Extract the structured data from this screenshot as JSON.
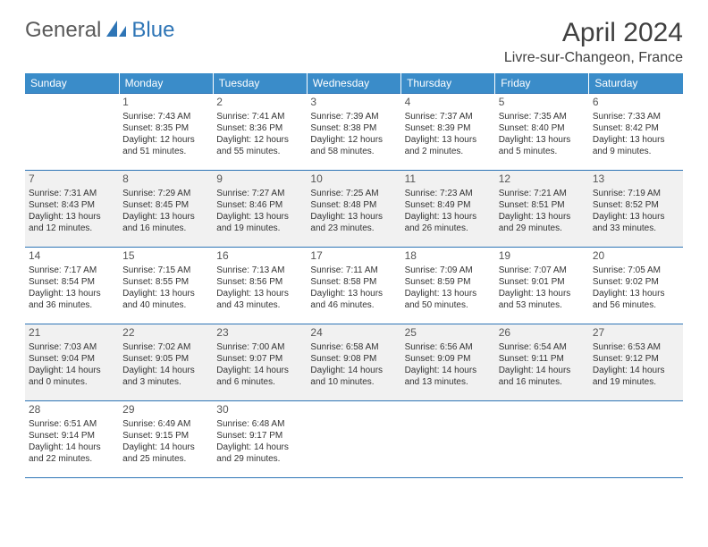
{
  "brand": {
    "general": "General",
    "blue": "Blue"
  },
  "title": "April 2024",
  "location": "Livre-sur-Changeon, France",
  "colors": {
    "header_bg": "#3a8cc9",
    "border": "#2e75b6",
    "shade_bg": "#f1f1f1",
    "text": "#333333"
  },
  "dayHeaders": [
    "Sunday",
    "Monday",
    "Tuesday",
    "Wednesday",
    "Thursday",
    "Friday",
    "Saturday"
  ],
  "weeks": [
    {
      "shaded": false,
      "days": [
        {
          "num": "",
          "lines": []
        },
        {
          "num": "1",
          "lines": [
            "Sunrise: 7:43 AM",
            "Sunset: 8:35 PM",
            "Daylight: 12 hours",
            "and 51 minutes."
          ]
        },
        {
          "num": "2",
          "lines": [
            "Sunrise: 7:41 AM",
            "Sunset: 8:36 PM",
            "Daylight: 12 hours",
            "and 55 minutes."
          ]
        },
        {
          "num": "3",
          "lines": [
            "Sunrise: 7:39 AM",
            "Sunset: 8:38 PM",
            "Daylight: 12 hours",
            "and 58 minutes."
          ]
        },
        {
          "num": "4",
          "lines": [
            "Sunrise: 7:37 AM",
            "Sunset: 8:39 PM",
            "Daylight: 13 hours",
            "and 2 minutes."
          ]
        },
        {
          "num": "5",
          "lines": [
            "Sunrise: 7:35 AM",
            "Sunset: 8:40 PM",
            "Daylight: 13 hours",
            "and 5 minutes."
          ]
        },
        {
          "num": "6",
          "lines": [
            "Sunrise: 7:33 AM",
            "Sunset: 8:42 PM",
            "Daylight: 13 hours",
            "and 9 minutes."
          ]
        }
      ]
    },
    {
      "shaded": true,
      "days": [
        {
          "num": "7",
          "lines": [
            "Sunrise: 7:31 AM",
            "Sunset: 8:43 PM",
            "Daylight: 13 hours",
            "and 12 minutes."
          ]
        },
        {
          "num": "8",
          "lines": [
            "Sunrise: 7:29 AM",
            "Sunset: 8:45 PM",
            "Daylight: 13 hours",
            "and 16 minutes."
          ]
        },
        {
          "num": "9",
          "lines": [
            "Sunrise: 7:27 AM",
            "Sunset: 8:46 PM",
            "Daylight: 13 hours",
            "and 19 minutes."
          ]
        },
        {
          "num": "10",
          "lines": [
            "Sunrise: 7:25 AM",
            "Sunset: 8:48 PM",
            "Daylight: 13 hours",
            "and 23 minutes."
          ]
        },
        {
          "num": "11",
          "lines": [
            "Sunrise: 7:23 AM",
            "Sunset: 8:49 PM",
            "Daylight: 13 hours",
            "and 26 minutes."
          ]
        },
        {
          "num": "12",
          "lines": [
            "Sunrise: 7:21 AM",
            "Sunset: 8:51 PM",
            "Daylight: 13 hours",
            "and 29 minutes."
          ]
        },
        {
          "num": "13",
          "lines": [
            "Sunrise: 7:19 AM",
            "Sunset: 8:52 PM",
            "Daylight: 13 hours",
            "and 33 minutes."
          ]
        }
      ]
    },
    {
      "shaded": false,
      "days": [
        {
          "num": "14",
          "lines": [
            "Sunrise: 7:17 AM",
            "Sunset: 8:54 PM",
            "Daylight: 13 hours",
            "and 36 minutes."
          ]
        },
        {
          "num": "15",
          "lines": [
            "Sunrise: 7:15 AM",
            "Sunset: 8:55 PM",
            "Daylight: 13 hours",
            "and 40 minutes."
          ]
        },
        {
          "num": "16",
          "lines": [
            "Sunrise: 7:13 AM",
            "Sunset: 8:56 PM",
            "Daylight: 13 hours",
            "and 43 minutes."
          ]
        },
        {
          "num": "17",
          "lines": [
            "Sunrise: 7:11 AM",
            "Sunset: 8:58 PM",
            "Daylight: 13 hours",
            "and 46 minutes."
          ]
        },
        {
          "num": "18",
          "lines": [
            "Sunrise: 7:09 AM",
            "Sunset: 8:59 PM",
            "Daylight: 13 hours",
            "and 50 minutes."
          ]
        },
        {
          "num": "19",
          "lines": [
            "Sunrise: 7:07 AM",
            "Sunset: 9:01 PM",
            "Daylight: 13 hours",
            "and 53 minutes."
          ]
        },
        {
          "num": "20",
          "lines": [
            "Sunrise: 7:05 AM",
            "Sunset: 9:02 PM",
            "Daylight: 13 hours",
            "and 56 minutes."
          ]
        }
      ]
    },
    {
      "shaded": true,
      "days": [
        {
          "num": "21",
          "lines": [
            "Sunrise: 7:03 AM",
            "Sunset: 9:04 PM",
            "Daylight: 14 hours",
            "and 0 minutes."
          ]
        },
        {
          "num": "22",
          "lines": [
            "Sunrise: 7:02 AM",
            "Sunset: 9:05 PM",
            "Daylight: 14 hours",
            "and 3 minutes."
          ]
        },
        {
          "num": "23",
          "lines": [
            "Sunrise: 7:00 AM",
            "Sunset: 9:07 PM",
            "Daylight: 14 hours",
            "and 6 minutes."
          ]
        },
        {
          "num": "24",
          "lines": [
            "Sunrise: 6:58 AM",
            "Sunset: 9:08 PM",
            "Daylight: 14 hours",
            "and 10 minutes."
          ]
        },
        {
          "num": "25",
          "lines": [
            "Sunrise: 6:56 AM",
            "Sunset: 9:09 PM",
            "Daylight: 14 hours",
            "and 13 minutes."
          ]
        },
        {
          "num": "26",
          "lines": [
            "Sunrise: 6:54 AM",
            "Sunset: 9:11 PM",
            "Daylight: 14 hours",
            "and 16 minutes."
          ]
        },
        {
          "num": "27",
          "lines": [
            "Sunrise: 6:53 AM",
            "Sunset: 9:12 PM",
            "Daylight: 14 hours",
            "and 19 minutes."
          ]
        }
      ]
    },
    {
      "shaded": false,
      "days": [
        {
          "num": "28",
          "lines": [
            "Sunrise: 6:51 AM",
            "Sunset: 9:14 PM",
            "Daylight: 14 hours",
            "and 22 minutes."
          ]
        },
        {
          "num": "29",
          "lines": [
            "Sunrise: 6:49 AM",
            "Sunset: 9:15 PM",
            "Daylight: 14 hours",
            "and 25 minutes."
          ]
        },
        {
          "num": "30",
          "lines": [
            "Sunrise: 6:48 AM",
            "Sunset: 9:17 PM",
            "Daylight: 14 hours",
            "and 29 minutes."
          ]
        },
        {
          "num": "",
          "lines": []
        },
        {
          "num": "",
          "lines": []
        },
        {
          "num": "",
          "lines": []
        },
        {
          "num": "",
          "lines": []
        }
      ]
    }
  ]
}
